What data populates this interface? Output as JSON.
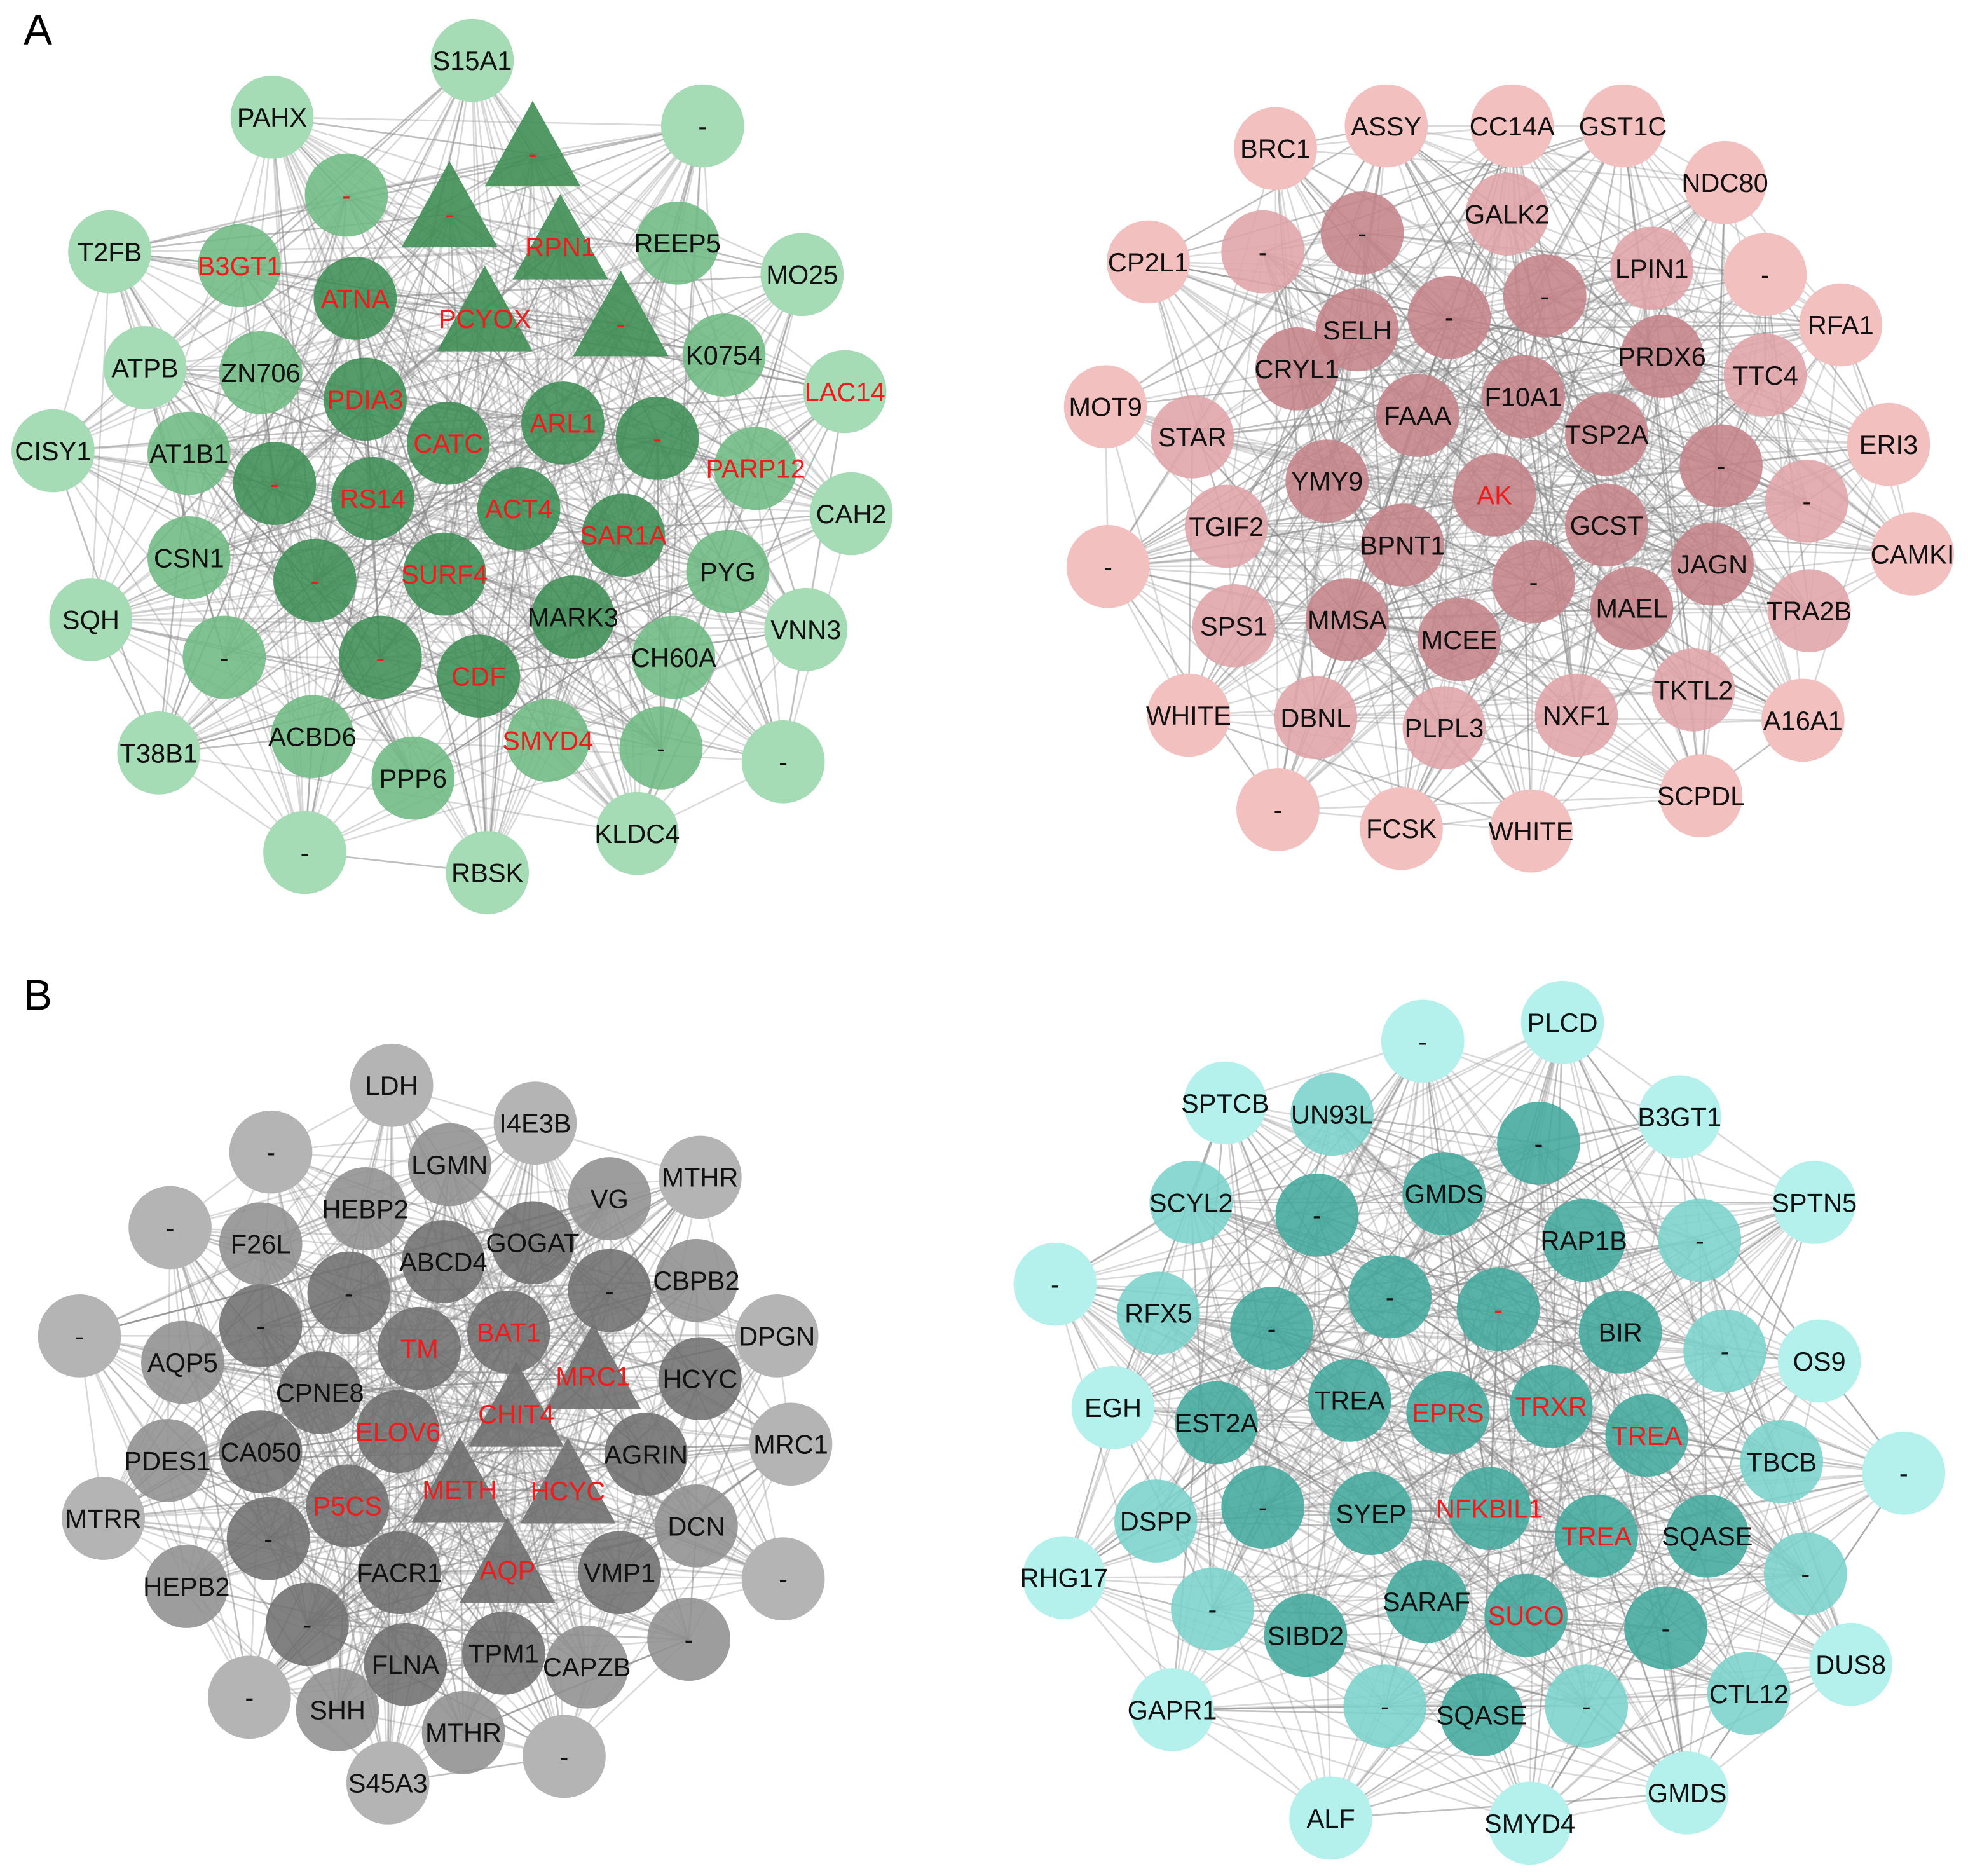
{
  "panels": [
    {
      "label": "A",
      "networks": [
        {
          "nodes": [
            "S15A1",
            "PAHX",
            "-",
            "T2FB",
            "MO25",
            "ATPB",
            "LAC14",
            "CISY1",
            "CAH2",
            "SQH",
            "VNN3",
            "T38B1",
            "-",
            "-",
            "RBSK",
            "KLDC4",
            "-",
            "B3GT1",
            "REEP5",
            "ZN706",
            "K0754",
            "AT1B1",
            "PARP12",
            "CSN1",
            "PYG",
            "-",
            "CH60A",
            "ACBD6",
            "-",
            "PPP6",
            "SMYD4",
            "ATNA",
            "PDIA3",
            "CATC",
            "ARL1",
            "-",
            "-",
            "RS14",
            "ACT4",
            "SAR1A",
            "-",
            "SURF4",
            "MARK3",
            "-",
            "CDF",
            "-",
            "-",
            "RPN1",
            "PCYOX",
            "-"
          ]
        },
        {
          "nodes": [
            "ASSY",
            "CC14A",
            "GST1C",
            "BRC1",
            "NDC80",
            "CP2L1",
            "-",
            "RFA1",
            "MOT9",
            "ERI3",
            "-",
            "CAMKI",
            "WHITE",
            "A16A1",
            "-",
            "FCSK",
            "WHITE",
            "SCPDL",
            "STAR",
            "TTC4",
            "TGIF2",
            "TRA2B",
            "-",
            "SPS1",
            "-",
            "GALK2",
            "LPIN1",
            "DBNL",
            "TKTL2",
            "NXF1",
            "PLPL3",
            "-",
            "SELH",
            "-",
            "-",
            "CRYL1",
            "PRDX6",
            "F10A1",
            "FAAA",
            "TSP2A",
            "YMY9",
            "AK",
            "GCST",
            "-",
            "BPNT1",
            "JAGN",
            "-",
            "MAEL",
            "MMSA",
            "MCEE"
          ]
        }
      ]
    },
    {
      "label": "B",
      "networks": [
        {
          "nodes": [
            "LDH",
            "I4E3B",
            "-",
            "MTHR",
            "-",
            "DPGN",
            "-",
            "MRC1",
            "MTRR",
            "-",
            "-",
            "S45A3",
            "-",
            "F26L",
            "VG",
            "CBPB2",
            "AQP5",
            "PDES1",
            "HEPB2",
            "SHH",
            "MTHR",
            "CAPZB",
            "-",
            "DCN",
            "LGMN",
            "HEBP2",
            "GOGAT",
            "ABCD4",
            "-",
            "-",
            "-",
            "TM",
            "BAT1",
            "HCYC",
            "CPNE8",
            "ELOV6",
            "AGRIN",
            "CA050",
            "P5CS",
            "-",
            "FACR1",
            "VMP1",
            "-",
            "FLNA",
            "TPM1",
            "MRC1",
            "CHIT4",
            "METH",
            "HCYC",
            "AQP"
          ]
        },
        {
          "nodes": [
            "PLCD",
            "-",
            "SPTCB",
            "B3GT1",
            "SPTN5",
            "-",
            "OS9",
            "EGH",
            "-",
            "RHG17",
            "DUS8",
            "GAPR1",
            "ALF",
            "SMYD4",
            "GMDS",
            "SCYL2",
            "CTL12",
            "TBCB",
            "-",
            "-",
            "UN93L",
            "RFX5",
            "DSPP",
            "-",
            "-",
            "-",
            "-",
            "-",
            "GMDS",
            "-",
            "RAP1B",
            "-",
            "-",
            "BIR",
            "-",
            "TREA",
            "EPRS",
            "TRXR",
            "TREA",
            "EST2A",
            "SYEP",
            "NFKBIL1",
            "TREA",
            "SQASE",
            "-",
            "SARAF",
            "SUCO",
            "-",
            "SIBD2",
            "SQASE"
          ]
        }
      ]
    }
  ]
}
